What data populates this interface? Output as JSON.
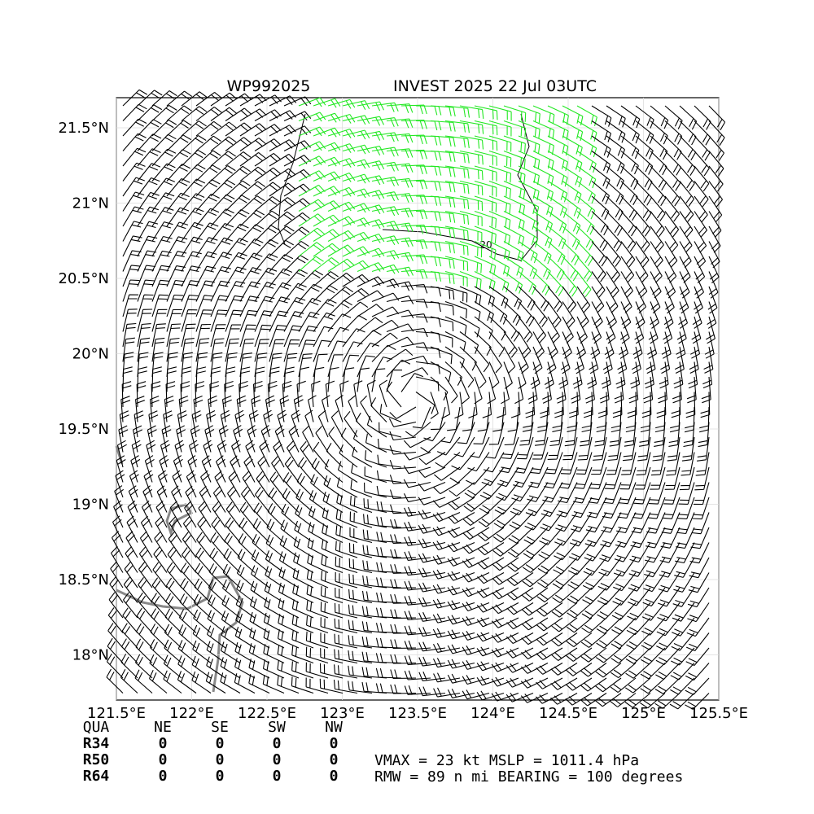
{
  "map": {
    "title_left": "WP992025",
    "title_right": "INVEST 2025 22 Jul 03UTC",
    "xlim": [
      121.5,
      125.5
    ],
    "ylim": [
      17.7,
      21.7
    ],
    "xticks": [
      {
        "value": 121.5,
        "label": "121.5°E"
      },
      {
        "value": 122,
        "label": "122°E"
      },
      {
        "value": 122.5,
        "label": "122.5°E"
      },
      {
        "value": 123,
        "label": "123°E"
      },
      {
        "value": 123.5,
        "label": "123.5°E"
      },
      {
        "value": 124,
        "label": "124°E"
      },
      {
        "value": 124.5,
        "label": "124.5°E"
      },
      {
        "value": 125,
        "label": "125°E"
      },
      {
        "value": 125.5,
        "label": "125.5°E"
      }
    ],
    "yticks": [
      {
        "value": 18,
        "label": "18°N"
      },
      {
        "value": 18.5,
        "label": "18.5°N"
      },
      {
        "value": 19,
        "label": "19°N"
      },
      {
        "value": 19.5,
        "label": "19.5°N"
      },
      {
        "value": 20,
        "label": "20°N"
      },
      {
        "value": 20.5,
        "label": "20.5°N"
      },
      {
        "value": 21,
        "label": "21°N"
      },
      {
        "value": 21.5,
        "label": "21.5°N"
      }
    ],
    "contour_label": "20"
  },
  "table": {
    "header": [
      "QUA",
      "NE",
      "SE",
      "SW",
      "NW"
    ],
    "rows": [
      [
        "R34",
        0,
        0,
        0,
        0
      ],
      [
        "R50",
        0,
        0,
        0,
        0
      ],
      [
        "R64",
        0,
        0,
        0,
        0
      ]
    ]
  },
  "summary": [
    "VMAX =  23 kt MSLP = 1011.4 hPa",
    "RMW =  89 n mi BEARING = 100 degrees"
  ]
}
